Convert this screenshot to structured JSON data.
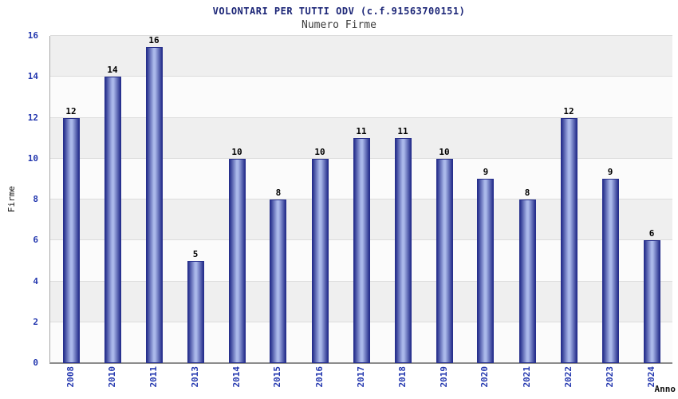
{
  "chart_data": {
    "type": "bar",
    "title": "VOLONTARI PER TUTTI ODV (c.f.91563700151)",
    "subtitle": "Numero Firme",
    "xlabel": "Anno",
    "ylabel": "Firme",
    "categories": [
      "2008",
      "2010",
      "2011",
      "2013",
      "2014",
      "2015",
      "2016",
      "2017",
      "2018",
      "2019",
      "2020",
      "2021",
      "2022",
      "2023",
      "2024"
    ],
    "values": [
      12,
      14,
      16,
      5,
      10,
      8,
      10,
      11,
      11,
      10,
      9,
      8,
      12,
      9,
      6
    ],
    "ylim": [
      0,
      16
    ],
    "ytick_step": 2,
    "grid": true,
    "legend": "none",
    "colors": {
      "title": "#1c2677",
      "subtitle": "#3c3c3c",
      "tick_label": "#2236ae",
      "value_label": "#000000",
      "bar_edge": "#262f8c",
      "bar_mid": "#aab8ea",
      "band_gray": "#efefef",
      "band_white": "#fbfbfb",
      "gridline": "#dcdcdc"
    }
  }
}
